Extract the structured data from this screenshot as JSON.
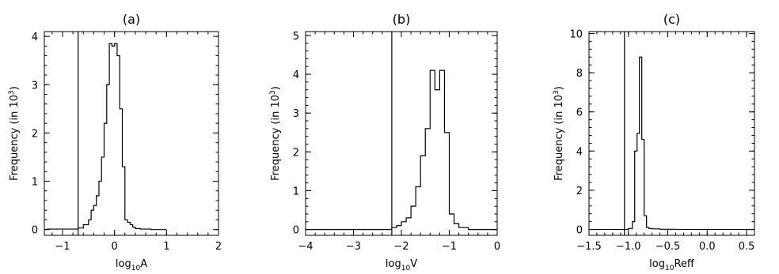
{
  "chart_data": [
    {
      "type": "histogram",
      "title": "(a)",
      "xlabel": {
        "prefix": "log",
        "sub": "10",
        "suffix": "A"
      },
      "ylabel": {
        "text": "Frequency  (in 10",
        "sup": "3",
        "end": ")"
      },
      "xlim": [
        -1.35,
        2.0
      ],
      "ylim": [
        -0.12,
        4.1
      ],
      "xticks": [
        -1,
        0,
        1,
        2
      ],
      "xtick_labels": [
        "−1",
        "0",
        "1",
        "2"
      ],
      "yticks": [
        0,
        1,
        2,
        3,
        4
      ],
      "ytick_labels": [
        "0",
        "1",
        "2",
        "3",
        "4"
      ],
      "reference_line_x": -0.7,
      "bins": {
        "edges": [
          -1.3,
          -0.7,
          -0.6,
          -0.5,
          -0.45,
          -0.4,
          -0.35,
          -0.3,
          -0.25,
          -0.2,
          -0.15,
          -0.1,
          -0.05,
          0.0,
          0.05,
          0.1,
          0.15,
          0.2,
          0.25,
          0.3,
          0.35,
          0.4,
          0.5,
          0.7,
          1.0
        ],
        "values": [
          0.01,
          0.03,
          0.1,
          0.2,
          0.4,
          0.5,
          0.7,
          1.0,
          1.5,
          2.2,
          3.0,
          3.85,
          3.8,
          3.85,
          3.6,
          2.5,
          1.3,
          0.2,
          0.15,
          0.1,
          0.05,
          0.02,
          0.01,
          0.0
        ]
      }
    },
    {
      "type": "histogram",
      "title": "(b)",
      "xlabel": {
        "prefix": "log",
        "sub": "10",
        "suffix": "V"
      },
      "ylabel": {
        "text": "Frequency  (in 10",
        "sup": "3",
        "end": ")"
      },
      "xlim": [
        -4.0,
        0.0
      ],
      "ylim": [
        -0.15,
        5.1
      ],
      "xticks": [
        -4,
        -3,
        -2,
        -1,
        0
      ],
      "xtick_labels": [
        "−4",
        "−3",
        "−2",
        "−1",
        "0"
      ],
      "yticks": [
        0,
        1,
        2,
        3,
        4,
        5
      ],
      "ytick_labels": [
        "0",
        "1",
        "2",
        "3",
        "4",
        "5"
      ],
      "reference_line_x": -2.2,
      "bins": {
        "edges": [
          -4.0,
          -2.2,
          -2.1,
          -2.0,
          -1.9,
          -1.8,
          -1.7,
          -1.6,
          -1.5,
          -1.4,
          -1.3,
          -1.2,
          -1.1,
          -1.0,
          -0.9,
          -0.8,
          -0.6,
          0.0
        ],
        "values": [
          0.0,
          0.05,
          0.1,
          0.2,
          0.3,
          0.6,
          1.1,
          1.9,
          2.6,
          4.1,
          3.6,
          4.1,
          2.5,
          0.4,
          0.15,
          0.05,
          0.0
        ]
      }
    },
    {
      "type": "histogram",
      "title": "(c)",
      "xlabel": {
        "prefix": "log",
        "sub": "10",
        "suffix": "Reff"
      },
      "ylabel": {
        "text": "Frequency  (in 10",
        "sup": "3",
        "end": ")"
      },
      "xlim": [
        -1.5,
        0.6
      ],
      "ylim": [
        -0.3,
        10.1
      ],
      "xticks": [
        -1.5,
        -1.0,
        -0.5,
        0.0,
        0.5
      ],
      "xtick_labels": [
        "−1.5",
        "−1.0",
        "−0.5",
        "0.0",
        "0.5"
      ],
      "yticks": [
        0,
        2,
        4,
        6,
        8,
        10
      ],
      "ytick_labels": [
        "0",
        "2",
        "4",
        "6",
        "8",
        "10"
      ],
      "reference_line_x": -1.05,
      "bins": {
        "edges": [
          -1.5,
          -1.0,
          -0.95,
          -0.92,
          -0.89,
          -0.86,
          -0.83,
          -0.8,
          -0.77,
          -0.74,
          -0.7,
          -0.6,
          -0.4,
          0.6
        ],
        "values": [
          0.0,
          0.05,
          0.4,
          4.0,
          4.9,
          8.8,
          4.6,
          0.7,
          0.1,
          0.05,
          0.03,
          0.01,
          0.0
        ]
      }
    }
  ]
}
